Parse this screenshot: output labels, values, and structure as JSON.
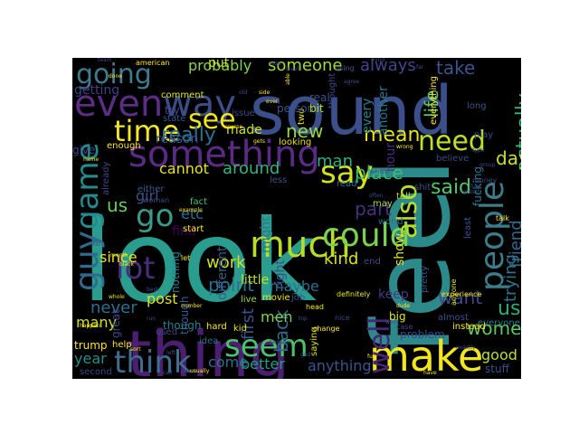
{
  "figure": {
    "background": "#000000",
    "words": [
      {
        "text": "look",
        "color": "#2a9d8f"
      },
      {
        "text": "feel",
        "color": "#2c8a8a"
      },
      {
        "text": "thing",
        "color": "#4b1f6f"
      },
      {
        "text": "sound",
        "color": "#3b4f8a"
      },
      {
        "text": "something",
        "color": "#5a2b83"
      },
      {
        "text": "people",
        "color": "#3d7c8a"
      },
      {
        "text": "much",
        "color": "#b7dd29"
      },
      {
        "text": "could",
        "color": "#7ad151"
      },
      {
        "text": "make",
        "color": "#f2e51d"
      },
      {
        "text": "going",
        "color": "#3e7b8f"
      },
      {
        "text": "even",
        "color": "#5b2d85"
      },
      {
        "text": "way",
        "color": "#3c4e8a"
      },
      {
        "text": "think",
        "color": "#3f6c8f"
      },
      {
        "text": "seem",
        "color": "#4ac16d"
      },
      {
        "text": "time",
        "color": "#f5e626"
      },
      {
        "text": "guy",
        "color": "#2e6b8e"
      },
      {
        "text": "game",
        "color": "#238a8d"
      },
      {
        "text": "say",
        "color": "#d2e21b"
      },
      {
        "text": "need",
        "color": "#bddf26"
      },
      {
        "text": "see",
        "color": "#f0e51e"
      },
      {
        "text": "go",
        "color": "#3b9b8a"
      },
      {
        "text": "lot",
        "color": "#472d7b"
      },
      {
        "text": "also",
        "color": "#b4de2c"
      },
      {
        "text": "well",
        "color": "#482576"
      },
      {
        "text": "really",
        "color": "#2b738e"
      },
      {
        "text": "actually",
        "color": "#32b67a"
      },
      {
        "text": "mean",
        "color": "#e5e419"
      },
      {
        "text": "new",
        "color": "#95d840"
      },
      {
        "text": "someone",
        "color": "#9fda3a"
      },
      {
        "text": "probably",
        "color": "#84d44b"
      },
      {
        "text": "take",
        "color": "#3a548c"
      },
      {
        "text": "always",
        "color": "#3f4788"
      },
      {
        "text": "getting",
        "color": "#433e85"
      },
      {
        "text": "life",
        "color": "#5ac864"
      },
      {
        "text": "day",
        "color": "#c8e020"
      },
      {
        "text": "said",
        "color": "#52c569"
      },
      {
        "text": "us",
        "color": "#6ccd5a"
      },
      {
        "text": "girl",
        "color": "#3b518b"
      },
      {
        "text": "cannot",
        "color": "#e7e419"
      },
      {
        "text": "around",
        "color": "#31b57b"
      },
      {
        "text": "etc",
        "color": "#2c728e"
      },
      {
        "text": "work",
        "color": "#d0e11c"
      },
      {
        "text": "point",
        "color": "#2e6e8e"
      },
      {
        "text": "first",
        "color": "#3b528b"
      },
      {
        "text": "kind",
        "color": "#d8e219"
      },
      {
        "text": "man",
        "color": "#2db27d"
      },
      {
        "text": "place",
        "color": "#3aba76"
      },
      {
        "text": "part",
        "color": "#46327e"
      },
      {
        "text": "want",
        "color": "#3f4889"
      },
      {
        "text": "use",
        "color": "#28ae80"
      },
      {
        "text": "trying",
        "color": "#2a778e"
      },
      {
        "text": "friend",
        "color": "#31688e"
      },
      {
        "text": "women",
        "color": "#5ec962"
      },
      {
        "text": "never",
        "color": "#2d708e"
      },
      {
        "text": "since",
        "color": "#e8e419"
      },
      {
        "text": "post",
        "color": "#dde318"
      },
      {
        "text": "year",
        "color": "#21918c"
      },
      {
        "text": "many",
        "color": "#d5e21a"
      },
      {
        "text": "back",
        "color": "#306a8e"
      },
      {
        "text": "maybe",
        "color": "#2c718e"
      },
      {
        "text": "men",
        "color": "#7ad151"
      },
      {
        "text": "better",
        "color": "#1f9f88"
      },
      {
        "text": "anything",
        "color": "#3a548c"
      },
      {
        "text": "good",
        "color": "#bddf26"
      },
      {
        "text": "come",
        "color": "#2d718e"
      },
      {
        "text": "problem",
        "color": "#404588"
      },
      {
        "text": "keep",
        "color": "#443983"
      },
      {
        "text": "little",
        "color": "#c2df23"
      },
      {
        "text": "right",
        "color": "#3c508b"
      },
      {
        "text": "different",
        "color": "#355f8d"
      },
      {
        "text": "might",
        "color": "#2a788e"
      },
      {
        "text": "find",
        "color": "#440154"
      },
      {
        "text": "hour",
        "color": "#472c7a"
      },
      {
        "text": "show",
        "color": "#e2e418"
      },
      {
        "text": "another",
        "color": "#2b758e"
      },
      {
        "text": "every",
        "color": "#277f8e"
      },
      {
        "text": "made",
        "color": "#d2e21b"
      },
      {
        "text": "put",
        "color": "#c2df23"
      },
      {
        "text": "reason",
        "color": "#3b518b"
      },
      {
        "text": "though",
        "color": "#365c8d"
      },
      {
        "text": "nothing",
        "color": "#26828e"
      },
      {
        "text": "great",
        "color": "#3e4a89"
      },
      {
        "text": "though",
        "color": "#287d8e"
      },
      {
        "text": "second",
        "color": "#3f4889"
      },
      {
        "text": "trump",
        "color": "#fde725"
      },
      {
        "text": "stuff",
        "color": "#3c4f8a"
      },
      {
        "text": "fucking",
        "color": "#2a788e"
      },
      {
        "text": "without",
        "color": "#287c8e"
      },
      {
        "text": "give",
        "color": "#404588"
      },
      {
        "text": "already",
        "color": "#3f4788"
      },
      {
        "text": "everyone",
        "color": "#277f8e"
      },
      {
        "text": "instead",
        "color": "#fde725"
      },
      {
        "text": "pretty",
        "color": "#38598c"
      },
      {
        "text": "idea",
        "color": "#2e6f8e"
      },
      {
        "text": "used",
        "color": "#3f4788"
      },
      {
        "text": "help",
        "color": "#fde725"
      },
      {
        "text": "start",
        "color": "#fde725"
      },
      {
        "text": "fact",
        "color": "#4ac16d"
      },
      {
        "text": "looking",
        "color": "#e7e419"
      },
      {
        "text": "less",
        "color": "#3b528b"
      },
      {
        "text": "saying",
        "color": "#dce319"
      },
      {
        "text": "read",
        "color": "#2c718e"
      },
      {
        "text": "job",
        "color": "#3b528b"
      },
      {
        "text": "end",
        "color": "#3e4a89"
      },
      {
        "text": "may",
        "color": "#a2da37"
      },
      {
        "text": "world",
        "color": "#2e6f8e"
      },
      {
        "text": "tell",
        "color": "#b8de29"
      },
      {
        "text": "play",
        "color": "#3e4989"
      },
      {
        "text": "two",
        "color": "#dfe318"
      },
      {
        "text": "person",
        "color": "#3a548c"
      },
      {
        "text": "bit",
        "color": "#b4de2c"
      },
      {
        "text": "real",
        "color": "#3b528b"
      },
      {
        "text": "try",
        "color": "#3e4a89"
      },
      {
        "text": "issue",
        "color": "#3f4788"
      },
      {
        "text": "state",
        "color": "#3b528b"
      },
      {
        "text": "comment",
        "color": "#e5e419"
      },
      {
        "text": "everything",
        "color": "#fde725"
      },
      {
        "text": "long",
        "color": "#3b518b"
      },
      {
        "text": "thought",
        "color": "#3e4989"
      },
      {
        "text": "enough",
        "color": "#fde725"
      },
      {
        "text": "either",
        "color": "#38598c"
      },
      {
        "text": "woman",
        "color": "#3e4a89"
      },
      {
        "text": "movie",
        "color": "#e8e419"
      },
      {
        "text": "live",
        "color": "#a0da39"
      },
      {
        "text": "head",
        "color": "#fde725"
      },
      {
        "text": "nice",
        "color": "#3f4889"
      },
      {
        "text": "big",
        "color": "#e5e419"
      },
      {
        "text": "let",
        "color": "#fde725"
      },
      {
        "text": "hard",
        "color": "#fde725"
      },
      {
        "text": "kid",
        "color": "#e5e419"
      },
      {
        "text": "experience",
        "color": "#fde725"
      },
      {
        "text": "almost",
        "color": "#3b528b"
      },
      {
        "text": "case",
        "color": "#3e4989"
      },
      {
        "text": "definitely",
        "color": "#e5e419"
      },
      {
        "text": "shit",
        "color": "#3b528b"
      },
      {
        "text": "believe",
        "color": "#3e4a89"
      },
      {
        "text": "least",
        "color": "#3b528b"
      },
      {
        "text": "anyone",
        "color": "#e5e419"
      },
      {
        "text": "money",
        "color": "#3e4989"
      },
      {
        "text": "talk",
        "color": "#fde725"
      },
      {
        "text": "looked",
        "color": "#3b528b"
      },
      {
        "text": "white",
        "color": "#3b528b"
      },
      {
        "text": "american",
        "color": "#fde725"
      },
      {
        "text": "month",
        "color": "#e5e419"
      },
      {
        "text": "example",
        "color": "#fde725"
      },
      {
        "text": "course",
        "color": "#fde725"
      },
      {
        "text": "side",
        "color": "#fde725"
      },
      {
        "text": "using",
        "color": "#3b528b"
      },
      {
        "text": "agree",
        "color": "#3b528b"
      },
      {
        "text": "done",
        "color": "#fde725"
      },
      {
        "text": "name",
        "color": "#fde725"
      },
      {
        "text": "black",
        "color": "#fde725"
      },
      {
        "text": "sub",
        "color": "#3b528b"
      },
      {
        "text": "whole",
        "color": "#e5e419"
      },
      {
        "text": "sort",
        "color": "#fde725"
      },
      {
        "text": "left",
        "color": "#3b528b"
      },
      {
        "text": "power",
        "color": "#3e4989"
      },
      {
        "text": "usually",
        "color": "#fde725"
      },
      {
        "text": "top",
        "color": "#3b528b"
      },
      {
        "text": "word",
        "color": "#3b528b"
      },
      {
        "text": "fun",
        "color": "#fde725"
      },
      {
        "text": "exactly",
        "color": "#3b528b"
      },
      {
        "text": "have",
        "color": "#fde725"
      },
      {
        "text": "change",
        "color": "#fde725"
      },
      {
        "text": "happen",
        "color": "#fde725"
      },
      {
        "text": "run",
        "color": "#3b528b"
      },
      {
        "text": "number",
        "color": "#fde725"
      },
      {
        "text": "become",
        "color": "#3b528b"
      },
      {
        "text": "wrong",
        "color": "#fde725"
      },
      {
        "text": "group",
        "color": "#3e4989"
      },
      {
        "text": "gets",
        "color": "#fde725"
      },
      {
        "text": "ever",
        "color": "#fde725"
      },
      {
        "text": "often",
        "color": "#3e4989"
      },
      {
        "text": "stop",
        "color": "#3b528b"
      },
      {
        "text": "mind",
        "color": "#3b528b"
      },
      {
        "text": "team",
        "color": "#3e4989"
      },
      {
        "text": "far",
        "color": "#3b528b"
      },
      {
        "text": "best",
        "color": "#3b528b"
      },
      {
        "text": "god",
        "color": "#3b528b"
      },
      {
        "text": "fuck",
        "color": "#3e4989"
      },
      {
        "text": "type",
        "color": "#3b528b"
      },
      {
        "text": "call",
        "color": "#3b528b"
      },
      {
        "text": "dude",
        "color": "#fde725"
      },
      {
        "text": "able",
        "color": "#fde725"
      },
      {
        "text": "level",
        "color": "#3b528b"
      },
      {
        "text": "old",
        "color": "#3b528b"
      }
    ]
  }
}
